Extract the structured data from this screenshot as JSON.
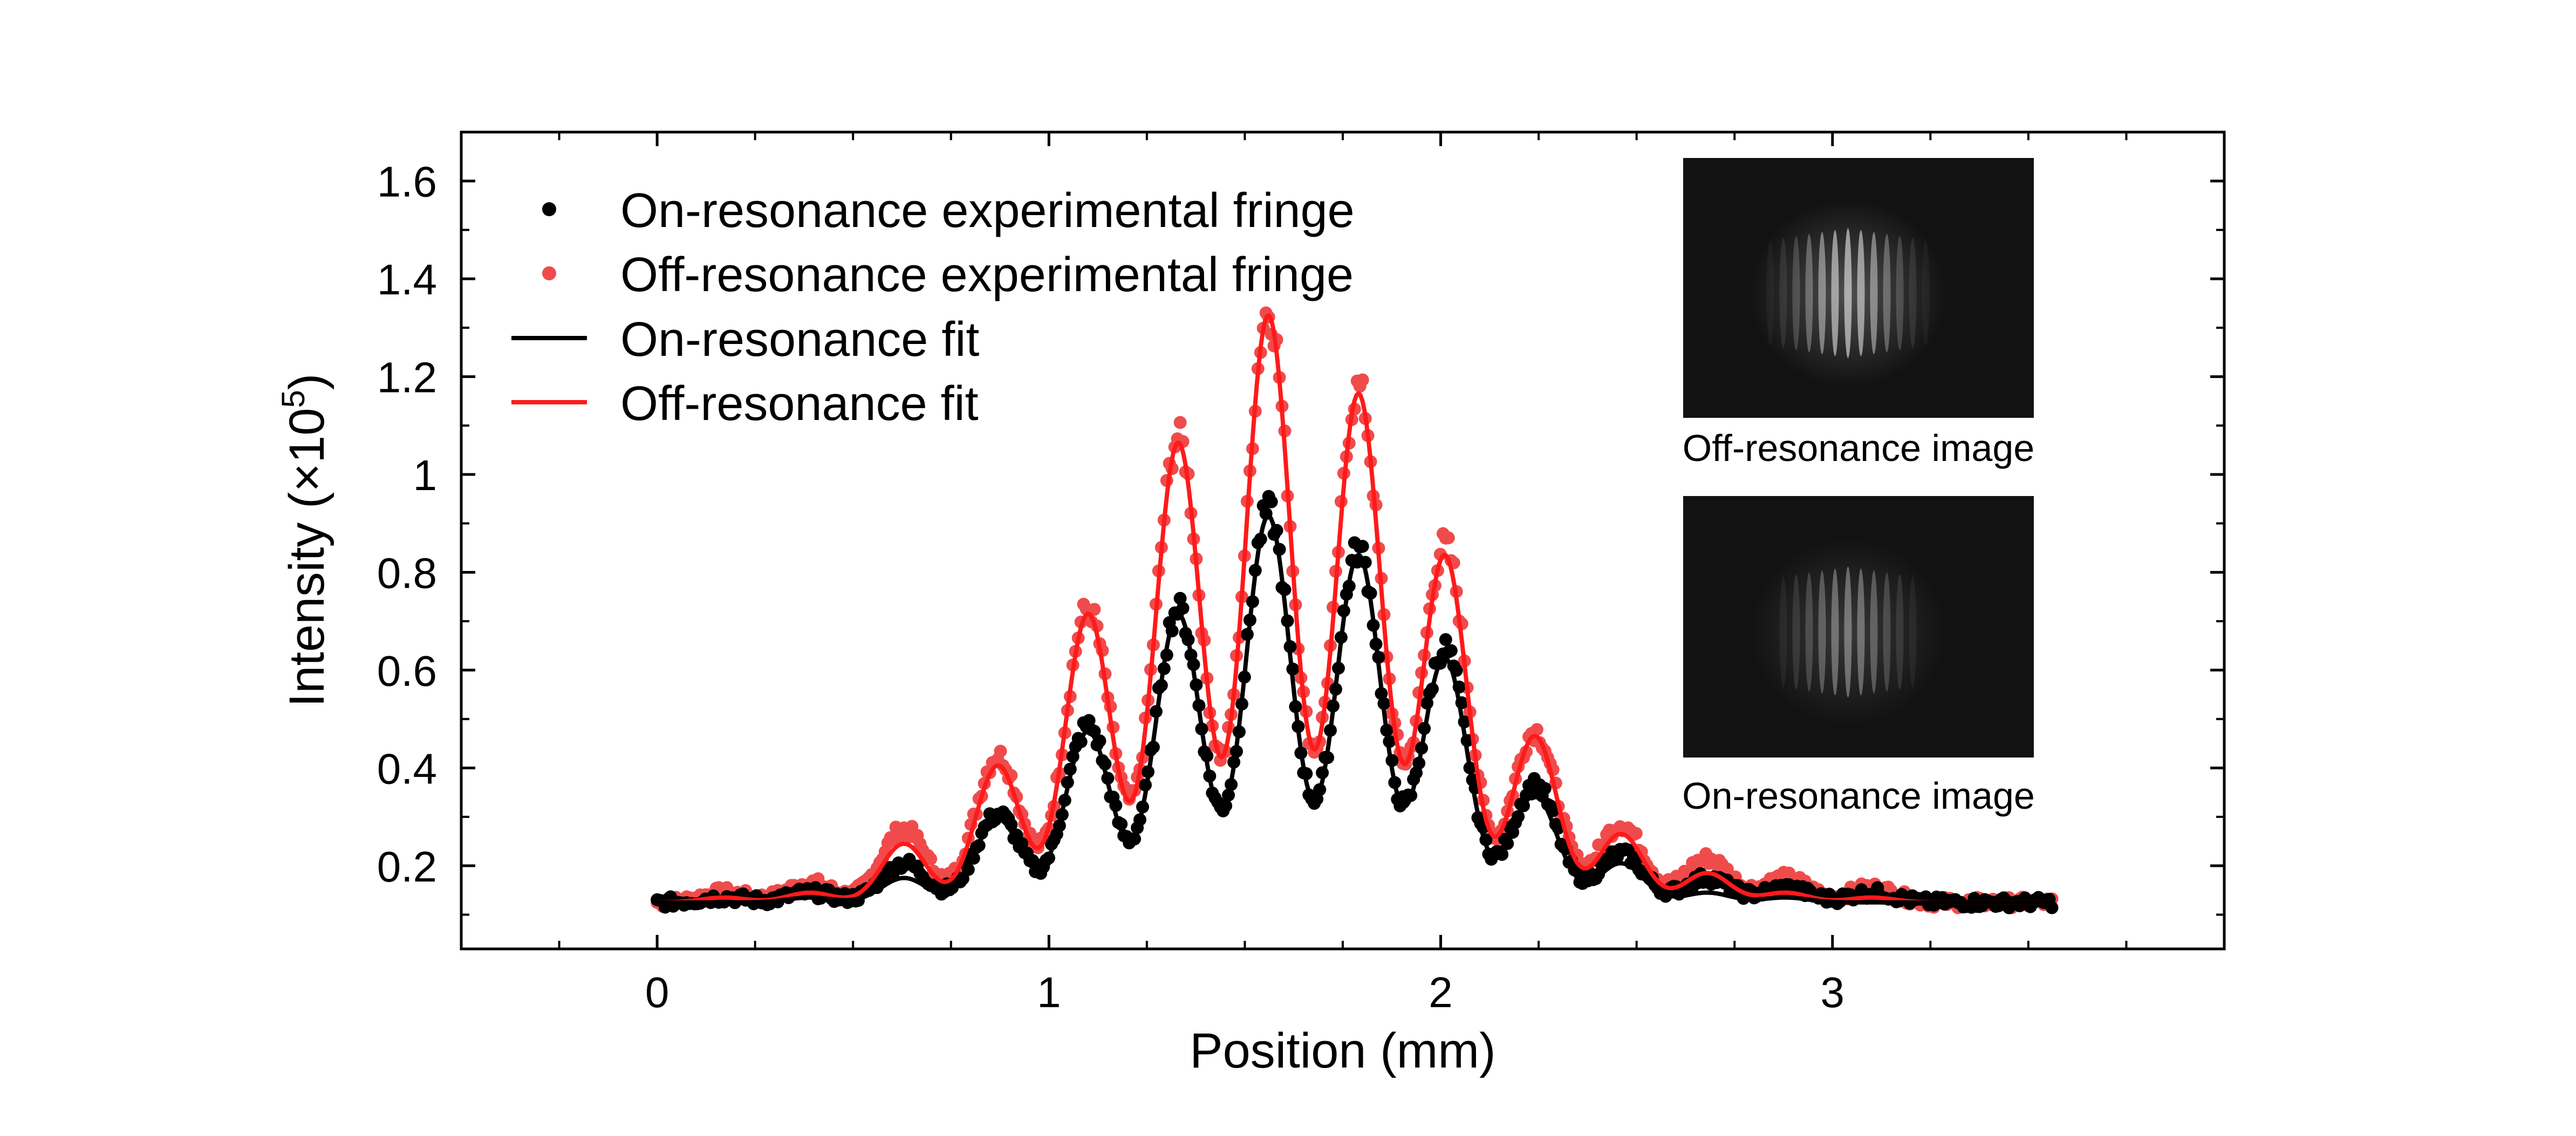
{
  "chart_data": {
    "type": "line",
    "title": "",
    "xlabel": "Position (mm)",
    "ylabel_prefix": "Intensity (×10",
    "ylabel_exponent": "5",
    "ylabel_suffix": ")",
    "xlim": [
      -0.5,
      4.0
    ],
    "ylim": [
      0.03,
      1.7
    ],
    "x_ticks": [
      0,
      1,
      2,
      3
    ],
    "x_tick_labels": [
      "0",
      "1",
      "2",
      "3"
    ],
    "y_ticks": [
      0.2,
      0.4,
      0.6,
      0.8,
      1.0,
      1.2,
      1.4,
      1.6
    ],
    "y_tick_labels": [
      "0.2",
      "0.4",
      "0.6",
      "0.8",
      "1",
      "1.2",
      "1.4",
      "1.6"
    ],
    "grid": false,
    "legend_position": "top-left",
    "model": {
      "description": "fringe envelope: baseline + sum of Gaussian peaks at listed centers",
      "x_range": [
        0,
        3.56
      ],
      "peak_centers": [
        0.17,
        0.39,
        0.63,
        0.87,
        1.1,
        1.33,
        1.56,
        1.79,
        2.01,
        2.24,
        2.46,
        2.68,
        2.88,
        3.1
      ],
      "peak_width": 0.058
    },
    "series": [
      {
        "name": "On-resonance experimental fringe",
        "style": "markers",
        "color": "#000000",
        "baseline": 0.125,
        "peak_heights": [
          0.01,
          0.02,
          0.08,
          0.18,
          0.36,
          0.6,
          0.8,
          0.72,
          0.52,
          0.24,
          0.1,
          0.05,
          0.03,
          0.02
        ]
      },
      {
        "name": "Off-resonance experimental fringe",
        "style": "markers",
        "color": "#f04b4b",
        "baseline": 0.125,
        "peak_heights": [
          0.02,
          0.04,
          0.15,
          0.3,
          0.6,
          0.95,
          1.21,
          1.05,
          0.73,
          0.35,
          0.16,
          0.09,
          0.05,
          0.03
        ]
      },
      {
        "name": "On-resonance fit",
        "style": "line",
        "color": "#000000",
        "baseline": 0.125,
        "peak_heights": [
          0.0,
          0.01,
          0.05,
          0.17,
          0.35,
          0.59,
          0.79,
          0.71,
          0.5,
          0.22,
          0.08,
          0.02,
          0.01,
          0.0
        ]
      },
      {
        "name": "Off-resonance fit",
        "style": "line",
        "color": "#ff1a1a",
        "baseline": 0.125,
        "peak_heights": [
          0.01,
          0.02,
          0.12,
          0.28,
          0.59,
          0.94,
          1.2,
          1.04,
          0.71,
          0.34,
          0.14,
          0.06,
          0.02,
          0.01
        ]
      }
    ],
    "legend": [
      {
        "label": "On-resonance experimental fringe",
        "marker": "dot",
        "color": "#000000"
      },
      {
        "label": "Off-resonance experimental fringe",
        "marker": "dot",
        "color": "#f04b4b"
      },
      {
        "label": "On-resonance fit",
        "marker": "line",
        "color": "#000000"
      },
      {
        "label": "Off-resonance fit",
        "marker": "line",
        "color": "#ff1a1a"
      }
    ],
    "insets": [
      {
        "caption": "Off-resonance image",
        "brightness": 1.0
      },
      {
        "caption": "On-resonance image",
        "brightness": 0.62
      }
    ]
  }
}
